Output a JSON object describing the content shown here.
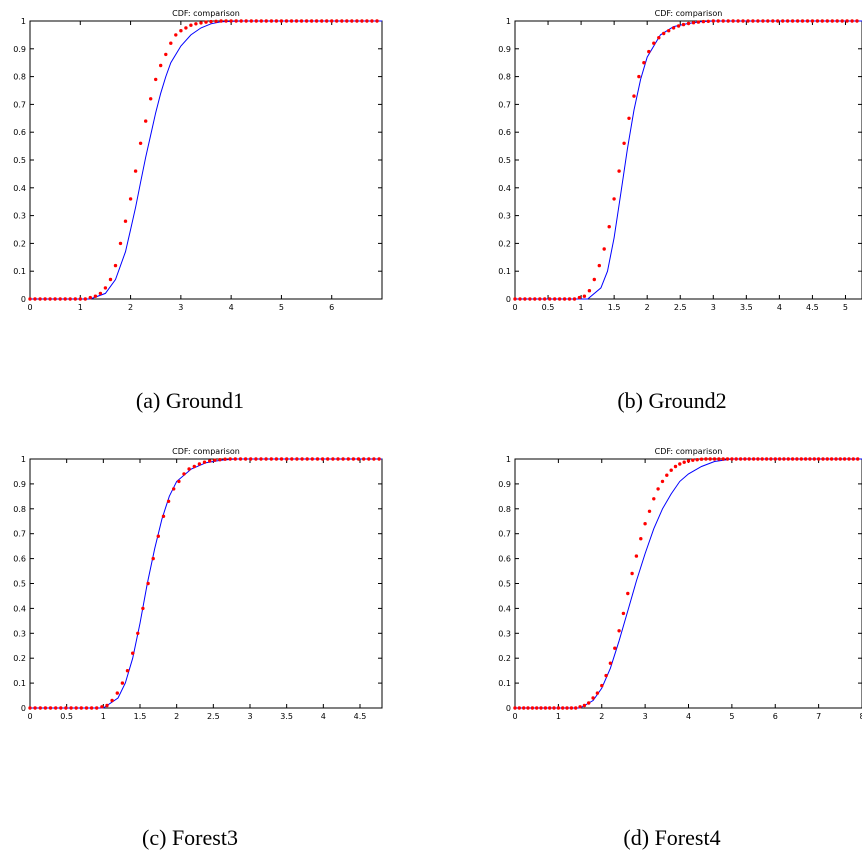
{
  "chart_data": [
    {
      "type": "line",
      "title": "CDF: comparison",
      "caption": "(a) Ground1",
      "xlim": [
        0,
        7
      ],
      "ylim": [
        0,
        1
      ],
      "xticks": [
        0,
        1,
        2,
        3,
        4,
        5,
        6
      ],
      "xtick_labels": [
        "0",
        "1",
        "2",
        "3",
        "4",
        "5",
        "6"
      ],
      "yticks": [
        0,
        0.1,
        0.2,
        0.3,
        0.4,
        0.5,
        0.6,
        0.7,
        0.8,
        0.9,
        1
      ],
      "ytick_labels": [
        "0",
        "0.1",
        "0.2",
        "0.3",
        "0.4",
        "0.5",
        "0.6",
        "0.7",
        "0.8",
        "0.9",
        "1"
      ],
      "grid": false,
      "series": [
        {
          "style": "line",
          "color": "#0000ff",
          "x": [
            0,
            1.2,
            1.5,
            1.7,
            1.9,
            2.0,
            2.1,
            2.2,
            2.3,
            2.4,
            2.5,
            2.6,
            2.7,
            2.8,
            3.0,
            3.2,
            3.4,
            3.6,
            3.8,
            4.2,
            7
          ],
          "y": [
            0,
            0,
            0.02,
            0.07,
            0.17,
            0.25,
            0.33,
            0.42,
            0.51,
            0.59,
            0.67,
            0.74,
            0.8,
            0.85,
            0.91,
            0.95,
            0.975,
            0.99,
            0.997,
            1,
            1
          ]
        },
        {
          "style": "markers",
          "color": "#ff0000",
          "x": [
            0,
            0.1,
            0.2,
            0.3,
            0.4,
            0.5,
            0.6,
            0.7,
            0.8,
            0.9,
            1.0,
            1.1,
            1.2,
            1.3,
            1.4,
            1.5,
            1.6,
            1.7,
            1.8,
            1.9,
            2.0,
            2.1,
            2.2,
            2.3,
            2.4,
            2.5,
            2.6,
            2.7,
            2.8,
            2.9,
            3.0,
            3.1,
            3.2,
            3.3,
            3.4,
            3.5,
            3.6,
            3.7,
            3.8,
            3.9,
            4.0,
            4.1,
            4.2,
            4.3,
            4.4,
            4.5,
            4.6,
            4.7,
            4.8,
            4.9,
            5.0,
            5.1,
            5.2,
            5.3,
            5.4,
            5.5,
            5.6,
            5.7,
            5.8,
            5.9,
            6.0,
            6.1,
            6.2,
            6.3,
            6.4,
            6.5,
            6.6,
            6.7,
            6.8,
            6.9
          ],
          "y": [
            0,
            0,
            0,
            0,
            0,
            0,
            0,
            0,
            0,
            0,
            0,
            0,
            0.005,
            0.01,
            0.02,
            0.04,
            0.07,
            0.12,
            0.2,
            0.28,
            0.36,
            0.46,
            0.56,
            0.64,
            0.72,
            0.79,
            0.84,
            0.88,
            0.92,
            0.95,
            0.965,
            0.975,
            0.985,
            0.99,
            0.993,
            0.996,
            0.998,
            0.999,
            1,
            1,
            1,
            1,
            1,
            1,
            1,
            1,
            1,
            1,
            1,
            1,
            1,
            1,
            1,
            1,
            1,
            1,
            1,
            1,
            1,
            1,
            1,
            1,
            1,
            1,
            1,
            1,
            1,
            1,
            1,
            1
          ]
        }
      ]
    },
    {
      "type": "line",
      "title": "CDF: comparison",
      "caption": "(b) Ground2",
      "xlim": [
        0,
        5.25
      ],
      "ylim": [
        0,
        1
      ],
      "xticks": [
        0,
        0.5,
        1,
        1.5,
        2,
        2.5,
        3,
        3.5,
        4,
        4.5,
        5
      ],
      "xtick_labels": [
        "0",
        "0.5",
        "1",
        "1.5",
        "2",
        "2.5",
        "3",
        "3.5",
        "4",
        "4.5",
        "5"
      ],
      "yticks": [
        0,
        0.1,
        0.2,
        0.3,
        0.4,
        0.5,
        0.6,
        0.7,
        0.8,
        0.9,
        1
      ],
      "ytick_labels": [
        "0",
        "0.1",
        "0.2",
        "0.3",
        "0.4",
        "0.5",
        "0.6",
        "0.7",
        "0.8",
        "0.9",
        "1"
      ],
      "grid": false,
      "series": [
        {
          "style": "line",
          "color": "#0000ff",
          "x": [
            0,
            1.1,
            1.3,
            1.4,
            1.5,
            1.6,
            1.7,
            1.8,
            1.9,
            2.0,
            2.2,
            2.4,
            2.6,
            2.8,
            3.0,
            3.4,
            5.25
          ],
          "y": [
            0,
            0,
            0.04,
            0.1,
            0.22,
            0.38,
            0.54,
            0.68,
            0.79,
            0.87,
            0.95,
            0.98,
            0.99,
            0.997,
            1,
            1,
            1
          ]
        },
        {
          "style": "markers",
          "color": "#ff0000",
          "x": [
            0,
            0.075,
            0.15,
            0.225,
            0.3,
            0.375,
            0.45,
            0.525,
            0.6,
            0.675,
            0.75,
            0.825,
            0.9,
            0.975,
            1.05,
            1.125,
            1.2,
            1.275,
            1.35,
            1.425,
            1.5,
            1.575,
            1.65,
            1.725,
            1.8,
            1.875,
            1.95,
            2.025,
            2.1,
            2.175,
            2.25,
            2.325,
            2.4,
            2.475,
            2.55,
            2.625,
            2.7,
            2.775,
            2.85,
            2.925,
            3.0,
            3.075,
            3.15,
            3.225,
            3.3,
            3.375,
            3.45,
            3.525,
            3.6,
            3.675,
            3.75,
            3.825,
            3.9,
            3.975,
            4.05,
            4.125,
            4.2,
            4.275,
            4.35,
            4.425,
            4.5,
            4.575,
            4.65,
            4.725,
            4.8,
            4.875,
            4.95,
            5.025,
            5.1,
            5.175
          ],
          "y": [
            0,
            0,
            0,
            0,
            0,
            0,
            0,
            0,
            0,
            0,
            0,
            0,
            0,
            0.005,
            0.01,
            0.03,
            0.07,
            0.12,
            0.18,
            0.26,
            0.36,
            0.46,
            0.56,
            0.65,
            0.73,
            0.8,
            0.85,
            0.89,
            0.92,
            0.94,
            0.955,
            0.965,
            0.975,
            0.982,
            0.987,
            0.991,
            0.994,
            0.996,
            0.998,
            0.999,
            1,
            1,
            1,
            1,
            1,
            1,
            1,
            1,
            1,
            1,
            1,
            1,
            1,
            1,
            1,
            1,
            1,
            1,
            1,
            1,
            1,
            1,
            1,
            1,
            1,
            1,
            1,
            1,
            1,
            1
          ]
        }
      ]
    },
    {
      "type": "line",
      "title": "CDF: comparison",
      "caption": "(c) Forest3",
      "xlim": [
        0,
        4.8
      ],
      "ylim": [
        0,
        1
      ],
      "xticks": [
        0,
        0.5,
        1,
        1.5,
        2,
        2.5,
        3,
        3.5,
        4,
        4.5
      ],
      "xtick_labels": [
        "0",
        "0.5",
        "1",
        "1.5",
        "2",
        "2.5",
        "3",
        "3.5",
        "4",
        "4.5"
      ],
      "yticks": [
        0,
        0.1,
        0.2,
        0.3,
        0.4,
        0.5,
        0.6,
        0.7,
        0.8,
        0.9,
        1
      ],
      "ytick_labels": [
        "0",
        "0.1",
        "0.2",
        "0.3",
        "0.4",
        "0.5",
        "0.6",
        "0.7",
        "0.8",
        "0.9",
        "1"
      ],
      "grid": false,
      "series": [
        {
          "style": "line",
          "color": "#0000ff",
          "x": [
            0,
            1.0,
            1.2,
            1.3,
            1.4,
            1.5,
            1.6,
            1.7,
            1.8,
            1.9,
            2.0,
            2.2,
            2.4,
            2.6,
            2.8,
            3.0,
            4.8
          ],
          "y": [
            0,
            0,
            0.04,
            0.1,
            0.2,
            0.34,
            0.5,
            0.64,
            0.76,
            0.85,
            0.91,
            0.96,
            0.985,
            0.995,
            1,
            1,
            1
          ]
        },
        {
          "style": "markers",
          "color": "#ff0000",
          "x": [
            0,
            0.07,
            0.14,
            0.21,
            0.28,
            0.35,
            0.42,
            0.49,
            0.56,
            0.63,
            0.7,
            0.77,
            0.84,
            0.91,
            0.98,
            1.05,
            1.12,
            1.19,
            1.26,
            1.33,
            1.4,
            1.47,
            1.54,
            1.61,
            1.68,
            1.75,
            1.82,
            1.89,
            1.96,
            2.03,
            2.1,
            2.17,
            2.24,
            2.31,
            2.38,
            2.45,
            2.52,
            2.59,
            2.66,
            2.73,
            2.8,
            2.87,
            2.94,
            3.01,
            3.08,
            3.15,
            3.22,
            3.29,
            3.36,
            3.43,
            3.5,
            3.57,
            3.64,
            3.71,
            3.78,
            3.85,
            3.92,
            3.99,
            4.06,
            4.13,
            4.2,
            4.27,
            4.34,
            4.41,
            4.48,
            4.55,
            4.62,
            4.69,
            4.76
          ],
          "y": [
            0,
            0,
            0,
            0,
            0,
            0,
            0,
            0,
            0,
            0,
            0,
            0,
            0,
            0,
            0.005,
            0.01,
            0.03,
            0.06,
            0.1,
            0.15,
            0.22,
            0.3,
            0.4,
            0.5,
            0.6,
            0.69,
            0.77,
            0.83,
            0.88,
            0.91,
            0.94,
            0.96,
            0.97,
            0.98,
            0.987,
            0.992,
            0.995,
            0.997,
            0.999,
            1,
            1,
            1,
            1,
            1,
            1,
            1,
            1,
            1,
            1,
            1,
            1,
            1,
            1,
            1,
            1,
            1,
            1,
            1,
            1,
            1,
            1,
            1,
            1,
            1,
            1,
            1,
            1,
            1,
            1
          ]
        }
      ]
    },
    {
      "type": "line",
      "title": "CDF: comparison",
      "caption": "(d) Forest4",
      "xlim": [
        0,
        8
      ],
      "ylim": [
        0,
        1
      ],
      "xticks": [
        0,
        1,
        2,
        3,
        4,
        5,
        6,
        7,
        8
      ],
      "xtick_labels": [
        "0",
        "1",
        "2",
        "3",
        "4",
        "5",
        "6",
        "7",
        "8"
      ],
      "yticks": [
        0,
        0.1,
        0.2,
        0.3,
        0.4,
        0.5,
        0.6,
        0.7,
        0.8,
        0.9,
        1
      ],
      "ytick_labels": [
        "0",
        "0.1",
        "0.2",
        "0.3",
        "0.4",
        "0.5",
        "0.6",
        "0.7",
        "0.8",
        "0.9",
        "1"
      ],
      "grid": false,
      "series": [
        {
          "style": "line",
          "color": "#0000ff",
          "x": [
            0,
            1.5,
            1.8,
            2.0,
            2.2,
            2.4,
            2.6,
            2.8,
            3.0,
            3.2,
            3.4,
            3.6,
            3.8,
            4.0,
            4.3,
            4.6,
            5.0,
            8
          ],
          "y": [
            0,
            0,
            0.03,
            0.08,
            0.16,
            0.27,
            0.39,
            0.51,
            0.62,
            0.72,
            0.8,
            0.86,
            0.91,
            0.94,
            0.97,
            0.99,
            1,
            1
          ]
        },
        {
          "style": "markers",
          "color": "#ff0000",
          "x": [
            0,
            0.1,
            0.2,
            0.3,
            0.4,
            0.5,
            0.6,
            0.7,
            0.8,
            0.9,
            1.0,
            1.1,
            1.2,
            1.3,
            1.4,
            1.5,
            1.6,
            1.7,
            1.8,
            1.9,
            2.0,
            2.1,
            2.2,
            2.3,
            2.4,
            2.5,
            2.6,
            2.7,
            2.8,
            2.9,
            3.0,
            3.1,
            3.2,
            3.3,
            3.4,
            3.5,
            3.6,
            3.7,
            3.8,
            3.9,
            4.0,
            4.1,
            4.2,
            4.3,
            4.4,
            4.5,
            4.6,
            4.7,
            4.8,
            4.9,
            5.0,
            5.1,
            5.2,
            5.3,
            5.4,
            5.5,
            5.6,
            5.7,
            5.8,
            5.9,
            6.0,
            6.1,
            6.2,
            6.3,
            6.4,
            6.5,
            6.6,
            6.7,
            6.8,
            6.9,
            7.0,
            7.1,
            7.2,
            7.3,
            7.4,
            7.5,
            7.6,
            7.7,
            7.8,
            7.9
          ],
          "y": [
            0,
            0,
            0,
            0,
            0,
            0,
            0,
            0,
            0,
            0,
            0,
            0,
            0,
            0,
            0,
            0.005,
            0.01,
            0.02,
            0.04,
            0.06,
            0.09,
            0.13,
            0.18,
            0.24,
            0.31,
            0.38,
            0.46,
            0.54,
            0.61,
            0.68,
            0.74,
            0.79,
            0.84,
            0.88,
            0.91,
            0.935,
            0.955,
            0.97,
            0.98,
            0.987,
            0.992,
            0.995,
            0.997,
            0.999,
            1,
            1,
            1,
            1,
            1,
            1,
            1,
            1,
            1,
            1,
            1,
            1,
            1,
            1,
            1,
            1,
            1,
            1,
            1,
            1,
            1,
            1,
            1,
            1,
            1,
            1,
            1,
            1,
            1,
            1,
            1,
            1,
            1,
            1,
            1,
            1
          ]
        }
      ]
    }
  ]
}
